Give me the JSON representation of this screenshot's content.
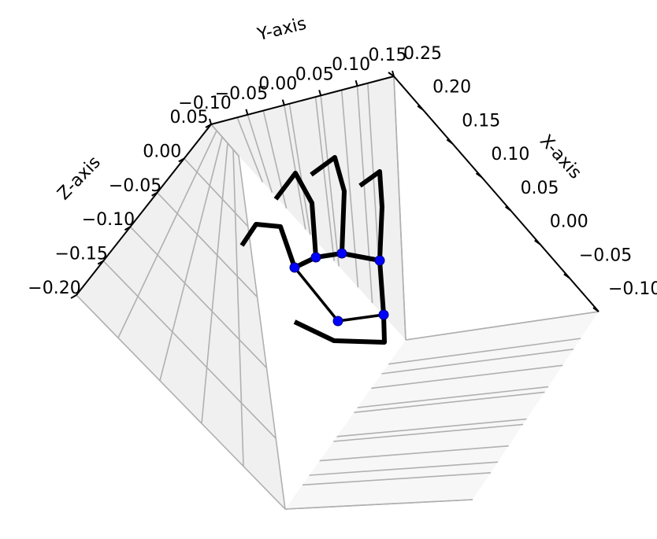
{
  "chart_data": {
    "type": "3d-line-scatter",
    "title": "",
    "colors": {
      "pane_light": "#f7f7f7",
      "pane_dark": "#f0f0f0",
      "grid": "#b0b0b0",
      "axis_line": "#000000",
      "bone": "#000000",
      "joint": "#0000ff"
    },
    "axes": {
      "x": {
        "label": "X-axis",
        "ticks": [
          "−0.10",
          "−0.05",
          "0.00",
          "0.05",
          "0.10",
          "0.15",
          "0.20",
          "0.25"
        ]
      },
      "y": {
        "label": "Y-axis",
        "ticks": [
          "−0.10",
          "−0.05",
          "0.00",
          "0.05",
          "0.10",
          "0.15"
        ]
      },
      "z": {
        "label": "Z-axis",
        "ticks": [
          "−0.20",
          "−0.15",
          "−0.10",
          "−0.05",
          "0.00",
          "0.05"
        ]
      }
    },
    "grid": true,
    "series": [
      {
        "kind": "skeleton-lines",
        "segments": [
          {
            "part": "wrist-index",
            "points": [
              [
                429,
                408
              ],
              [
                374,
                340
              ]
            ]
          },
          {
            "part": "wrist-pinky",
            "points": [
              [
                429,
                408
              ],
              [
                487,
                400
              ]
            ]
          },
          {
            "part": "palm-knuckles",
            "points": [
              [
                374,
                340
              ],
              [
                401,
                327
              ],
              [
                434,
                322
              ],
              [
                482,
                331
              ],
              [
                487,
                400
              ]
            ]
          },
          {
            "part": "thumb",
            "points": [
              [
                487,
                400
              ],
              [
                488,
                435
              ],
              [
                424,
                433
              ],
              [
                374,
                409
              ]
            ]
          },
          {
            "part": "index",
            "points": [
              [
                374,
                340
              ],
              [
                356,
                288
              ],
              [
                325,
                285
              ],
              [
                307,
                312
              ]
            ]
          },
          {
            "part": "middle",
            "points": [
              [
                401,
                327
              ],
              [
                396,
                258
              ],
              [
                375,
                220
              ],
              [
                350,
                253
              ]
            ]
          },
          {
            "part": "ring",
            "points": [
              [
                434,
                322
              ],
              [
                437,
                243
              ],
              [
                425,
                200
              ],
              [
                395,
                222
              ]
            ]
          },
          {
            "part": "pinky",
            "points": [
              [
                482,
                331
              ],
              [
                485,
                263
              ],
              [
                482,
                218
              ],
              [
                457,
                236
              ]
            ]
          }
        ]
      },
      {
        "kind": "joints",
        "points": [
          [
            374,
            340
          ],
          [
            401,
            327
          ],
          [
            434,
            322
          ],
          [
            482,
            331
          ],
          [
            429,
            408
          ],
          [
            487,
            400
          ]
        ]
      }
    ]
  }
}
